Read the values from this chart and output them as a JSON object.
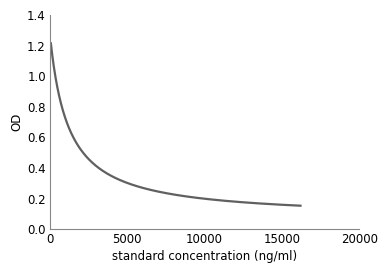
{
  "xlabel": "standard concentration (ng/ml)",
  "ylabel": "OD",
  "xlim": [
    0,
    20000
  ],
  "ylim": [
    0,
    1.4
  ],
  "xticks": [
    0,
    5000,
    10000,
    15000,
    20000
  ],
  "yticks": [
    0,
    0.2,
    0.4,
    0.6,
    0.8,
    1.0,
    1.2,
    1.4
  ],
  "line_color": "#606060",
  "line_width": 1.6,
  "background_color": "#ffffff",
  "curve_start_x": 50,
  "curve_end_x": 16200,
  "a": 1430,
  "b": 0.068,
  "c": 1200,
  "figsize": [
    3.77,
    2.71
  ],
  "dpi": 100
}
